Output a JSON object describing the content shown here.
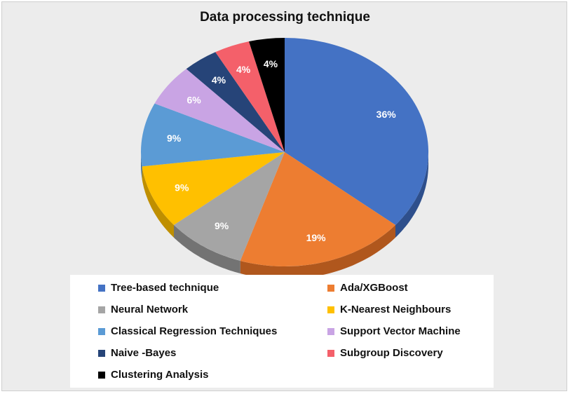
{
  "chart_data": {
    "type": "pie",
    "title": "Data processing technique",
    "slices": [
      {
        "label": "Tree-based technique",
        "value": 36,
        "display": "36%",
        "color": "#4472C4",
        "side": "#2E4F8C"
      },
      {
        "label": "Ada/XGBoost",
        "value": 19,
        "display": "19%",
        "color": "#ED7D31",
        "side": "#B0571D"
      },
      {
        "label": "Neural Network",
        "value": 9,
        "display": "9%",
        "color": "#A5A5A5",
        "side": "#737373"
      },
      {
        "label": "K-Nearest Neighbours",
        "value": 9,
        "display": "9%",
        "color": "#FFC000",
        "side": "#BF8F00"
      },
      {
        "label": "Classical Regression Techniques",
        "value": 9,
        "display": "9%",
        "color": "#5B9BD5",
        "side": "#3D6E9C"
      },
      {
        "label": "Support Vector Machine",
        "value": 6,
        "display": "6%",
        "color": "#C9A4E4",
        "side": "#9479A8"
      },
      {
        "label": "Naive -Bayes",
        "value": 4,
        "display": "4%",
        "color": "#264478",
        "side": "#182C4E"
      },
      {
        "label": "Subgroup Discovery",
        "value": 4,
        "display": "4%",
        "color": "#F4606A",
        "side": "#B8454C"
      },
      {
        "label": "Clustering Analysis",
        "value": 4,
        "display": "4%",
        "color": "#000000",
        "side": "#111111"
      }
    ],
    "legend_position": "bottom"
  }
}
